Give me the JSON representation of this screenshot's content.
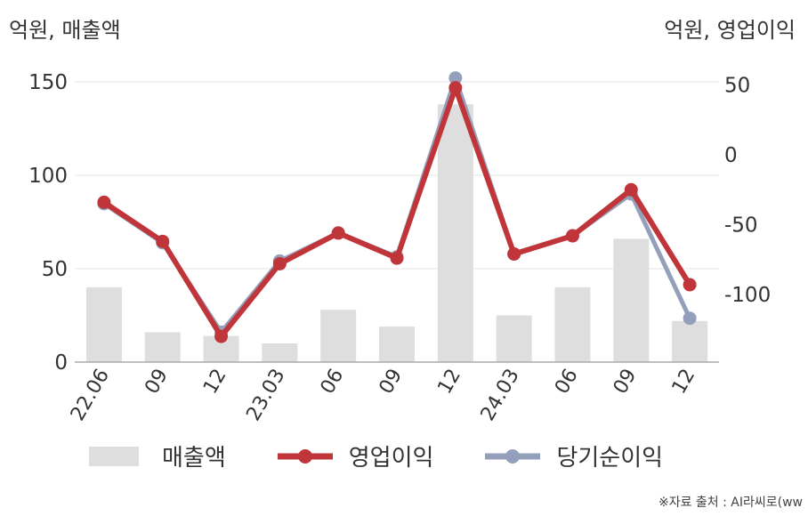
{
  "chart_data": {
    "type": "bar+line",
    "left_axis_label": "억원, 매출액",
    "right_axis_label": "억원, 영업이익",
    "categories": [
      "22.06",
      "09",
      "12",
      "23.03",
      "06",
      "09",
      "12",
      "24.03",
      "06",
      "09",
      "12"
    ],
    "left_axis": {
      "min": 0,
      "max": 160,
      "ticks": [
        0,
        50,
        100,
        150
      ]
    },
    "right_axis": {
      "min": -150,
      "max": 55,
      "ticks": [
        -100,
        -50,
        0,
        50
      ]
    },
    "series": [
      {
        "name": "매출액",
        "type": "bar",
        "axis": "left",
        "color": "#dedede",
        "values": [
          40,
          16,
          14,
          10,
          28,
          19,
          138,
          25,
          40,
          66,
          22
        ]
      },
      {
        "name": "영업이익",
        "type": "line",
        "axis": "right",
        "color": "#c0353a",
        "values": [
          -34,
          -62,
          -130,
          -78,
          -56,
          -74,
          48,
          -71,
          -58,
          -25,
          -93
        ]
      },
      {
        "name": "당기순이익",
        "type": "line",
        "axis": "right",
        "color": "#94a0bb",
        "values": [
          -35,
          -63,
          -127,
          -76,
          -56,
          -73,
          55,
          -71,
          -58,
          -28,
          -117
        ]
      }
    ],
    "legend": [
      "매출액",
      "영업이익",
      "당기순이익"
    ],
    "legend_position": "bottom",
    "grid": true
  },
  "source_text": "※자료 출처 : AI라씨로(ww"
}
